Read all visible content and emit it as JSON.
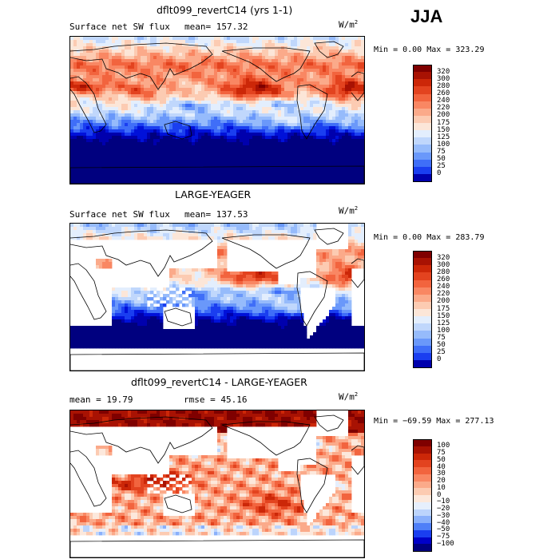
{
  "season": "JJA",
  "panels": [
    {
      "title": "dflt099_revertC14 (yrs 1-1)",
      "variable": "Surface net SW flux",
      "stat_text": "mean=  157.32",
      "units": "W/m",
      "units_sup": "2",
      "minmax": "Min =    0.00 Max = 323.29",
      "palette": [
        "#FFFFFF",
        "#00007F",
        "#0000AD",
        "#0011D9",
        "#1A3EF0",
        "#3F6EF8",
        "#6A98FA",
        "#96BBFB",
        "#C0D7FC",
        "#E3EEFD",
        "#FCE6D8",
        "#FCCBB2",
        "#FBAA8A",
        "#F98763",
        "#F2643E",
        "#E3431F",
        "#CC2708",
        "#A81203",
        "#7F0000"
      ],
      "colorbar": {
        "levels": [
          "320",
          "300",
          "280",
          "260",
          "240",
          "220",
          "200",
          "175",
          "150",
          "125",
          "100",
          "75",
          "50",
          "25",
          "0"
        ],
        "colors": [
          "#7F0000",
          "#A81203",
          "#CC2708",
          "#E3431F",
          "#F2643E",
          "#F98763",
          "#FBAA8A",
          "#FCCBB2",
          "#FCE6D8",
          "#E3EEFD",
          "#C0D7FC",
          "#96BBFB",
          "#6A98FA",
          "#3F6EF8",
          "#1A3EF0",
          "#0000AD"
        ]
      }
    },
    {
      "title": "LARGE-YEAGER",
      "variable": "Surface net SW flux",
      "stat_text": "mean=  137.53",
      "units": "W/m",
      "units_sup": "2",
      "minmax": "Min =    0.00 Max = 283.79",
      "palette": [
        "#FFFFFF",
        "#00007F",
        "#0000AD",
        "#0011D9",
        "#1A3EF0",
        "#3F6EF8",
        "#6A98FA",
        "#96BBFB",
        "#C0D7FC",
        "#E3EEFD",
        "#FCE6D8",
        "#FCCBB2",
        "#FBAA8A",
        "#F98763",
        "#F2643E",
        "#E3431F",
        "#CC2708",
        "#A81203",
        "#7F0000"
      ],
      "colorbar": {
        "levels": [
          "320",
          "300",
          "280",
          "260",
          "240",
          "220",
          "200",
          "175",
          "150",
          "125",
          "100",
          "75",
          "50",
          "25",
          "0"
        ],
        "colors": [
          "#7F0000",
          "#A81203",
          "#CC2708",
          "#E3431F",
          "#F2643E",
          "#F98763",
          "#FBAA8A",
          "#FCCBB2",
          "#FCE6D8",
          "#E3EEFD",
          "#C0D7FC",
          "#96BBFB",
          "#6A98FA",
          "#3F6EF8",
          "#1A3EF0",
          "#0000AD"
        ]
      }
    },
    {
      "title": "dflt099_revertC14 - LARGE-YEAGER",
      "variable": "",
      "stat_text": "mean =   19.79",
      "rmse_text": "rmse =   45.16",
      "units": "W/m",
      "units_sup": "2",
      "minmax": "Min = −69.59 Max = 277.13",
      "palette": [
        "#FFFFFF",
        "#00007F",
        "#0000C8",
        "#1A3EF0",
        "#4F7FF8",
        "#8AB0FB",
        "#BCD4FC",
        "#E6EFFD",
        "#FCE8DC",
        "#FCCBB2",
        "#FBAA8A",
        "#F98763",
        "#F2643E",
        "#E3431F",
        "#CC2708",
        "#A81203",
        "#7F0000"
      ],
      "colorbar": {
        "levels": [
          "100",
          "75",
          "50",
          "40",
          "30",
          "20",
          "10",
          "0",
          "−10",
          "−20",
          "−30",
          "−40",
          "−50",
          "−75",
          "−100"
        ],
        "colors": [
          "#7F0000",
          "#A81203",
          "#CC2708",
          "#E3431F",
          "#F2643E",
          "#F98763",
          "#FBAA8A",
          "#FCCBB2",
          "#FCE8DC",
          "#E6EFFD",
          "#BCD4FC",
          "#8AB0FB",
          "#4F7FF8",
          "#1A3EF0",
          "#0000C8",
          "#00007F"
        ]
      }
    }
  ]
}
